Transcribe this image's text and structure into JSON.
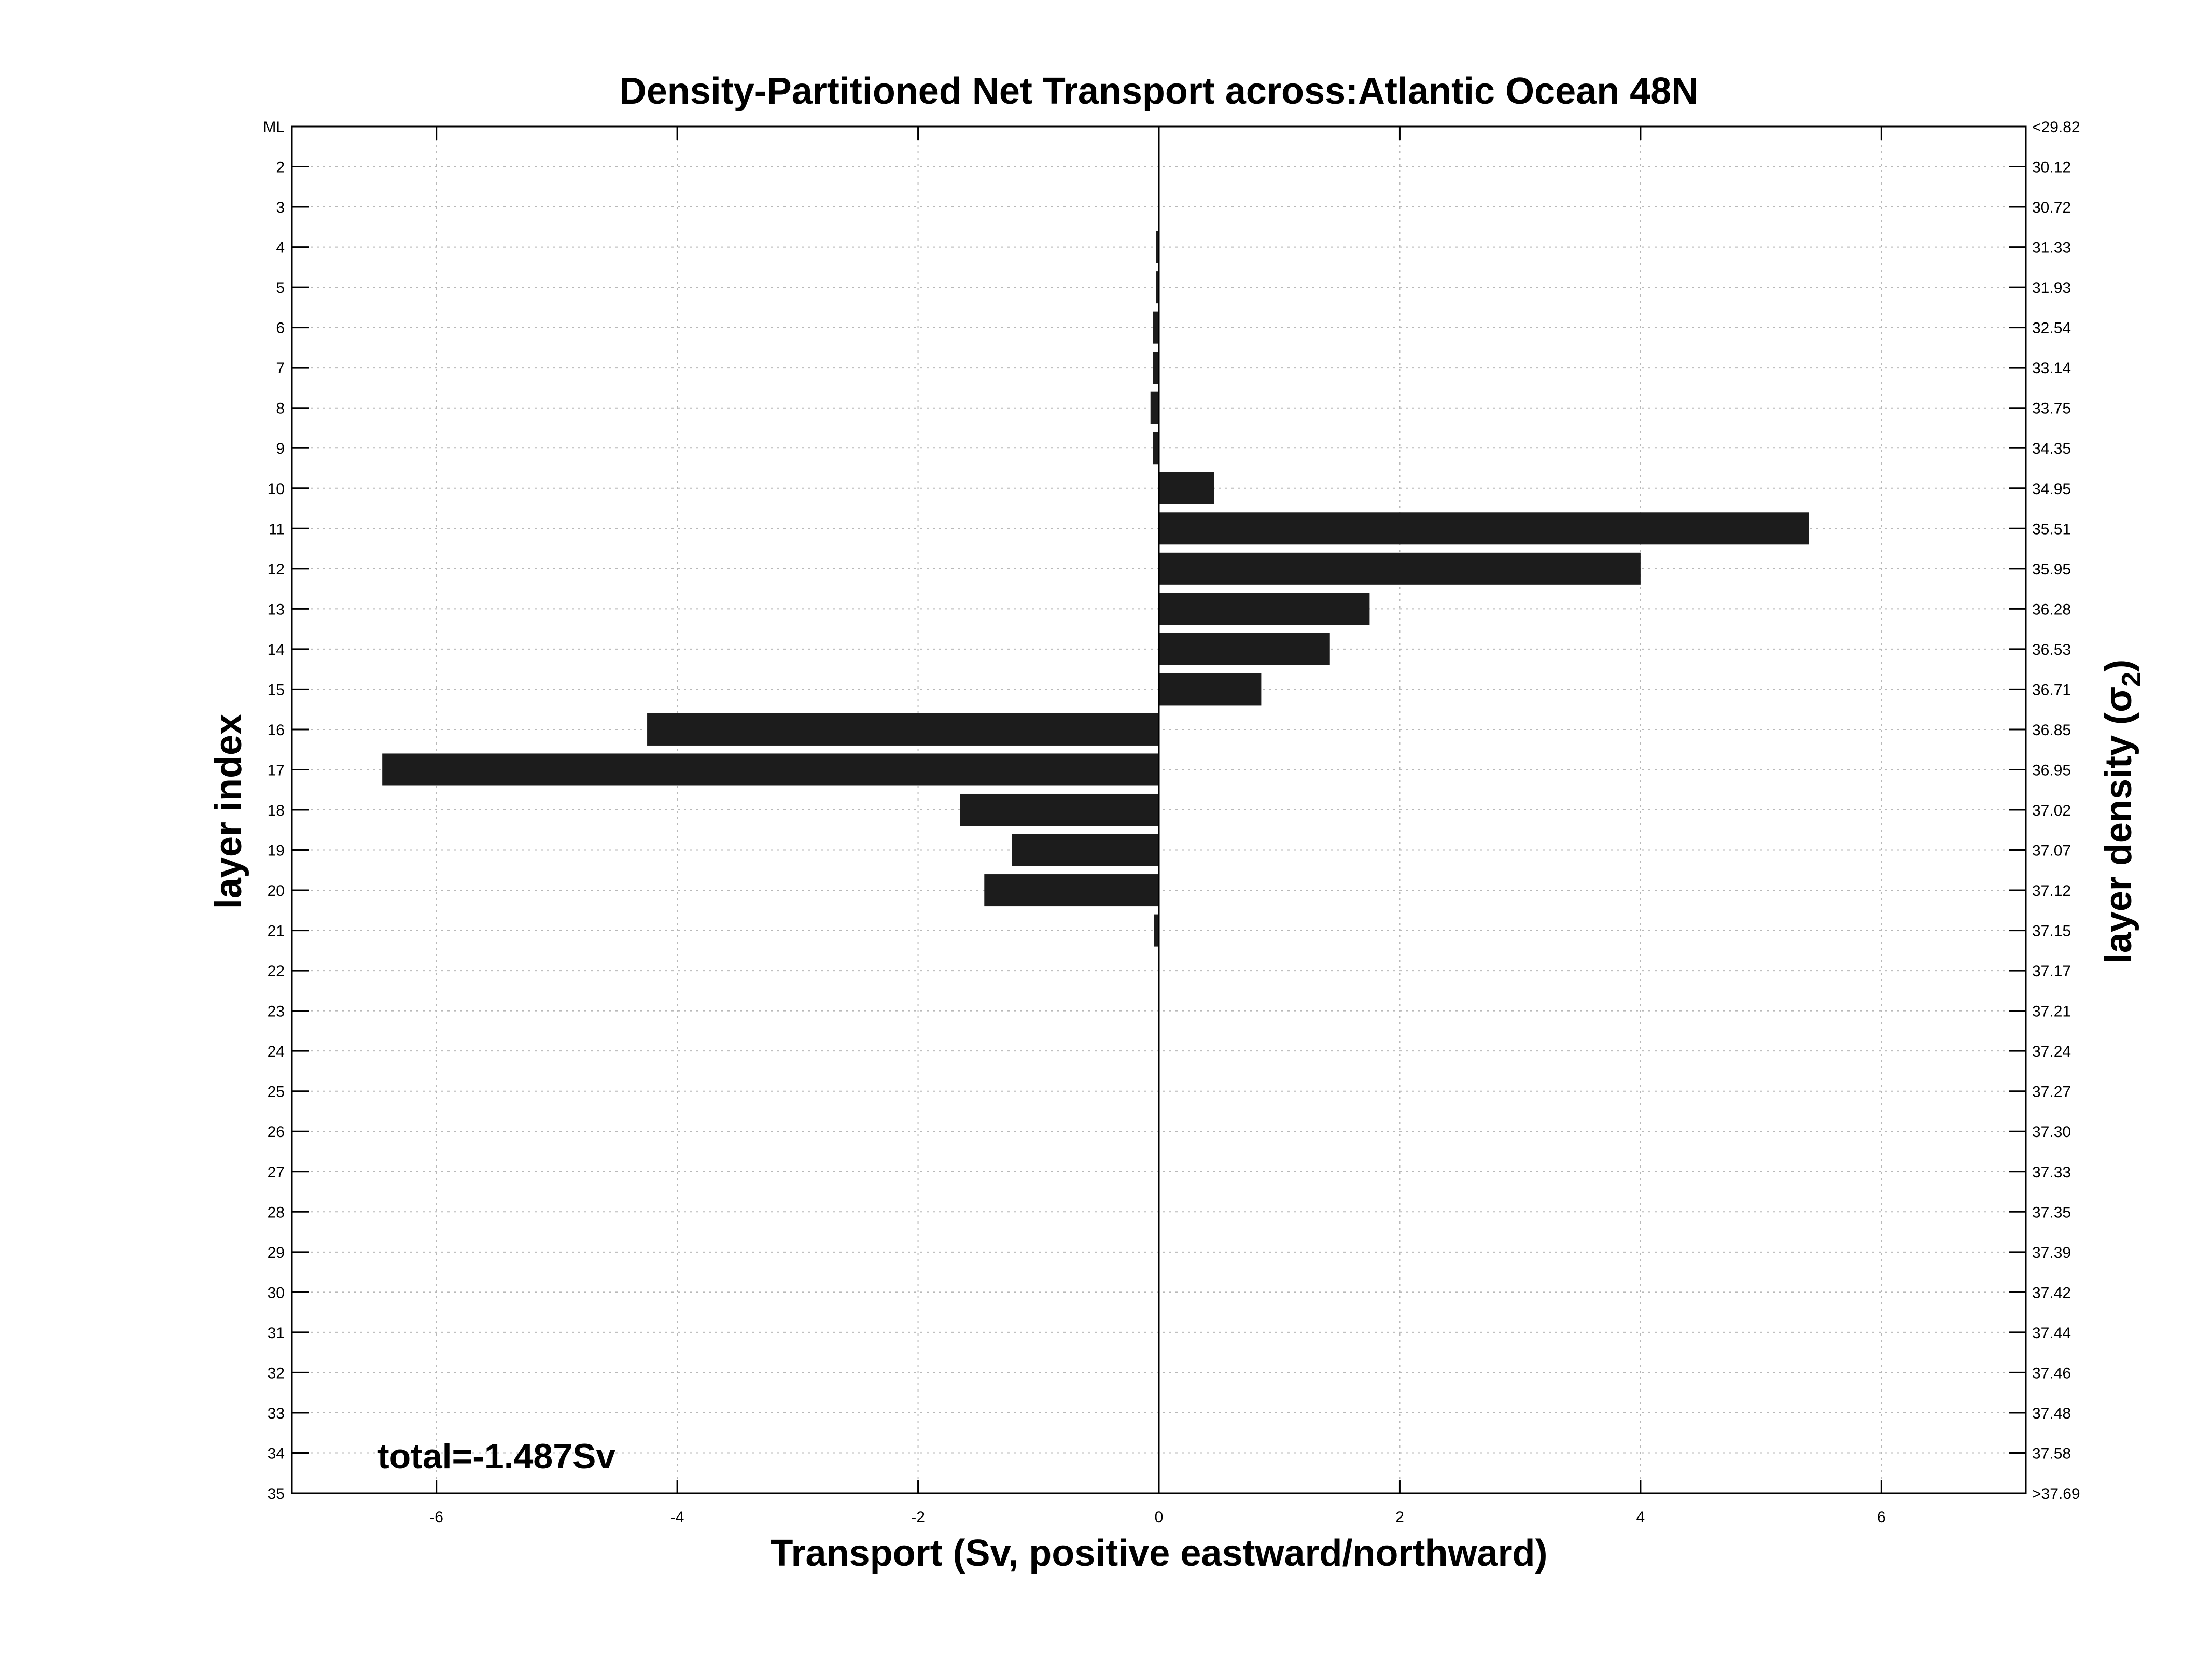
{
  "chart_data": {
    "type": "bar",
    "orientation": "horizontal",
    "title": "Density-Partitioned Net Transport across:Atlantic Ocean 48N",
    "xlabel": "Transport (Sv, positive eastward/northward)",
    "ylabel": "layer index",
    "ylabel_right_text": "layer density (",
    "ylabel_right_symbol": "σ",
    "ylabel_right_subscript": "2",
    "ylabel_right_close": ")",
    "xlim": [
      -7.2,
      7.2
    ],
    "xticks": [
      -6,
      -4,
      -2,
      0,
      2,
      4,
      6
    ],
    "xtick_labels": [
      "-6",
      "-4",
      "-2",
      "0",
      "2",
      "4",
      "6"
    ],
    "grid": true,
    "categories": [
      "ML",
      "2",
      "3",
      "4",
      "5",
      "6",
      "7",
      "8",
      "9",
      "10",
      "11",
      "12",
      "13",
      "14",
      "15",
      "16",
      "17",
      "18",
      "19",
      "20",
      "21",
      "22",
      "23",
      "24",
      "25",
      "26",
      "27",
      "28",
      "29",
      "30",
      "31",
      "32",
      "33",
      "34",
      "35"
    ],
    "density_labels": [
      "<29.82",
      "30.12",
      "30.72",
      "31.33",
      "31.93",
      "32.54",
      "33.14",
      "33.75",
      "34.35",
      "34.95",
      "35.51",
      "35.95",
      "36.28",
      "36.53",
      "36.71",
      "36.85",
      "36.95",
      "37.02",
      "37.07",
      "37.12",
      "37.15",
      "37.17",
      "37.21",
      "37.24",
      "37.27",
      "37.30",
      "37.33",
      "37.35",
      "37.39",
      "37.42",
      "37.44",
      "37.46",
      "37.48",
      "37.58",
      ">37.69"
    ],
    "values": [
      0,
      0,
      0,
      -0.02,
      -0.01,
      -0.05,
      -0.05,
      -0.07,
      -0.05,
      0.46,
      5.4,
      4.0,
      1.75,
      1.42,
      0.85,
      -4.25,
      -6.45,
      -1.65,
      -1.22,
      -1.45,
      -0.04,
      0,
      0,
      0,
      0,
      0,
      0,
      0,
      0,
      0,
      0,
      0,
      0,
      0,
      0
    ],
    "annotation": "total=-1.487Sv"
  }
}
